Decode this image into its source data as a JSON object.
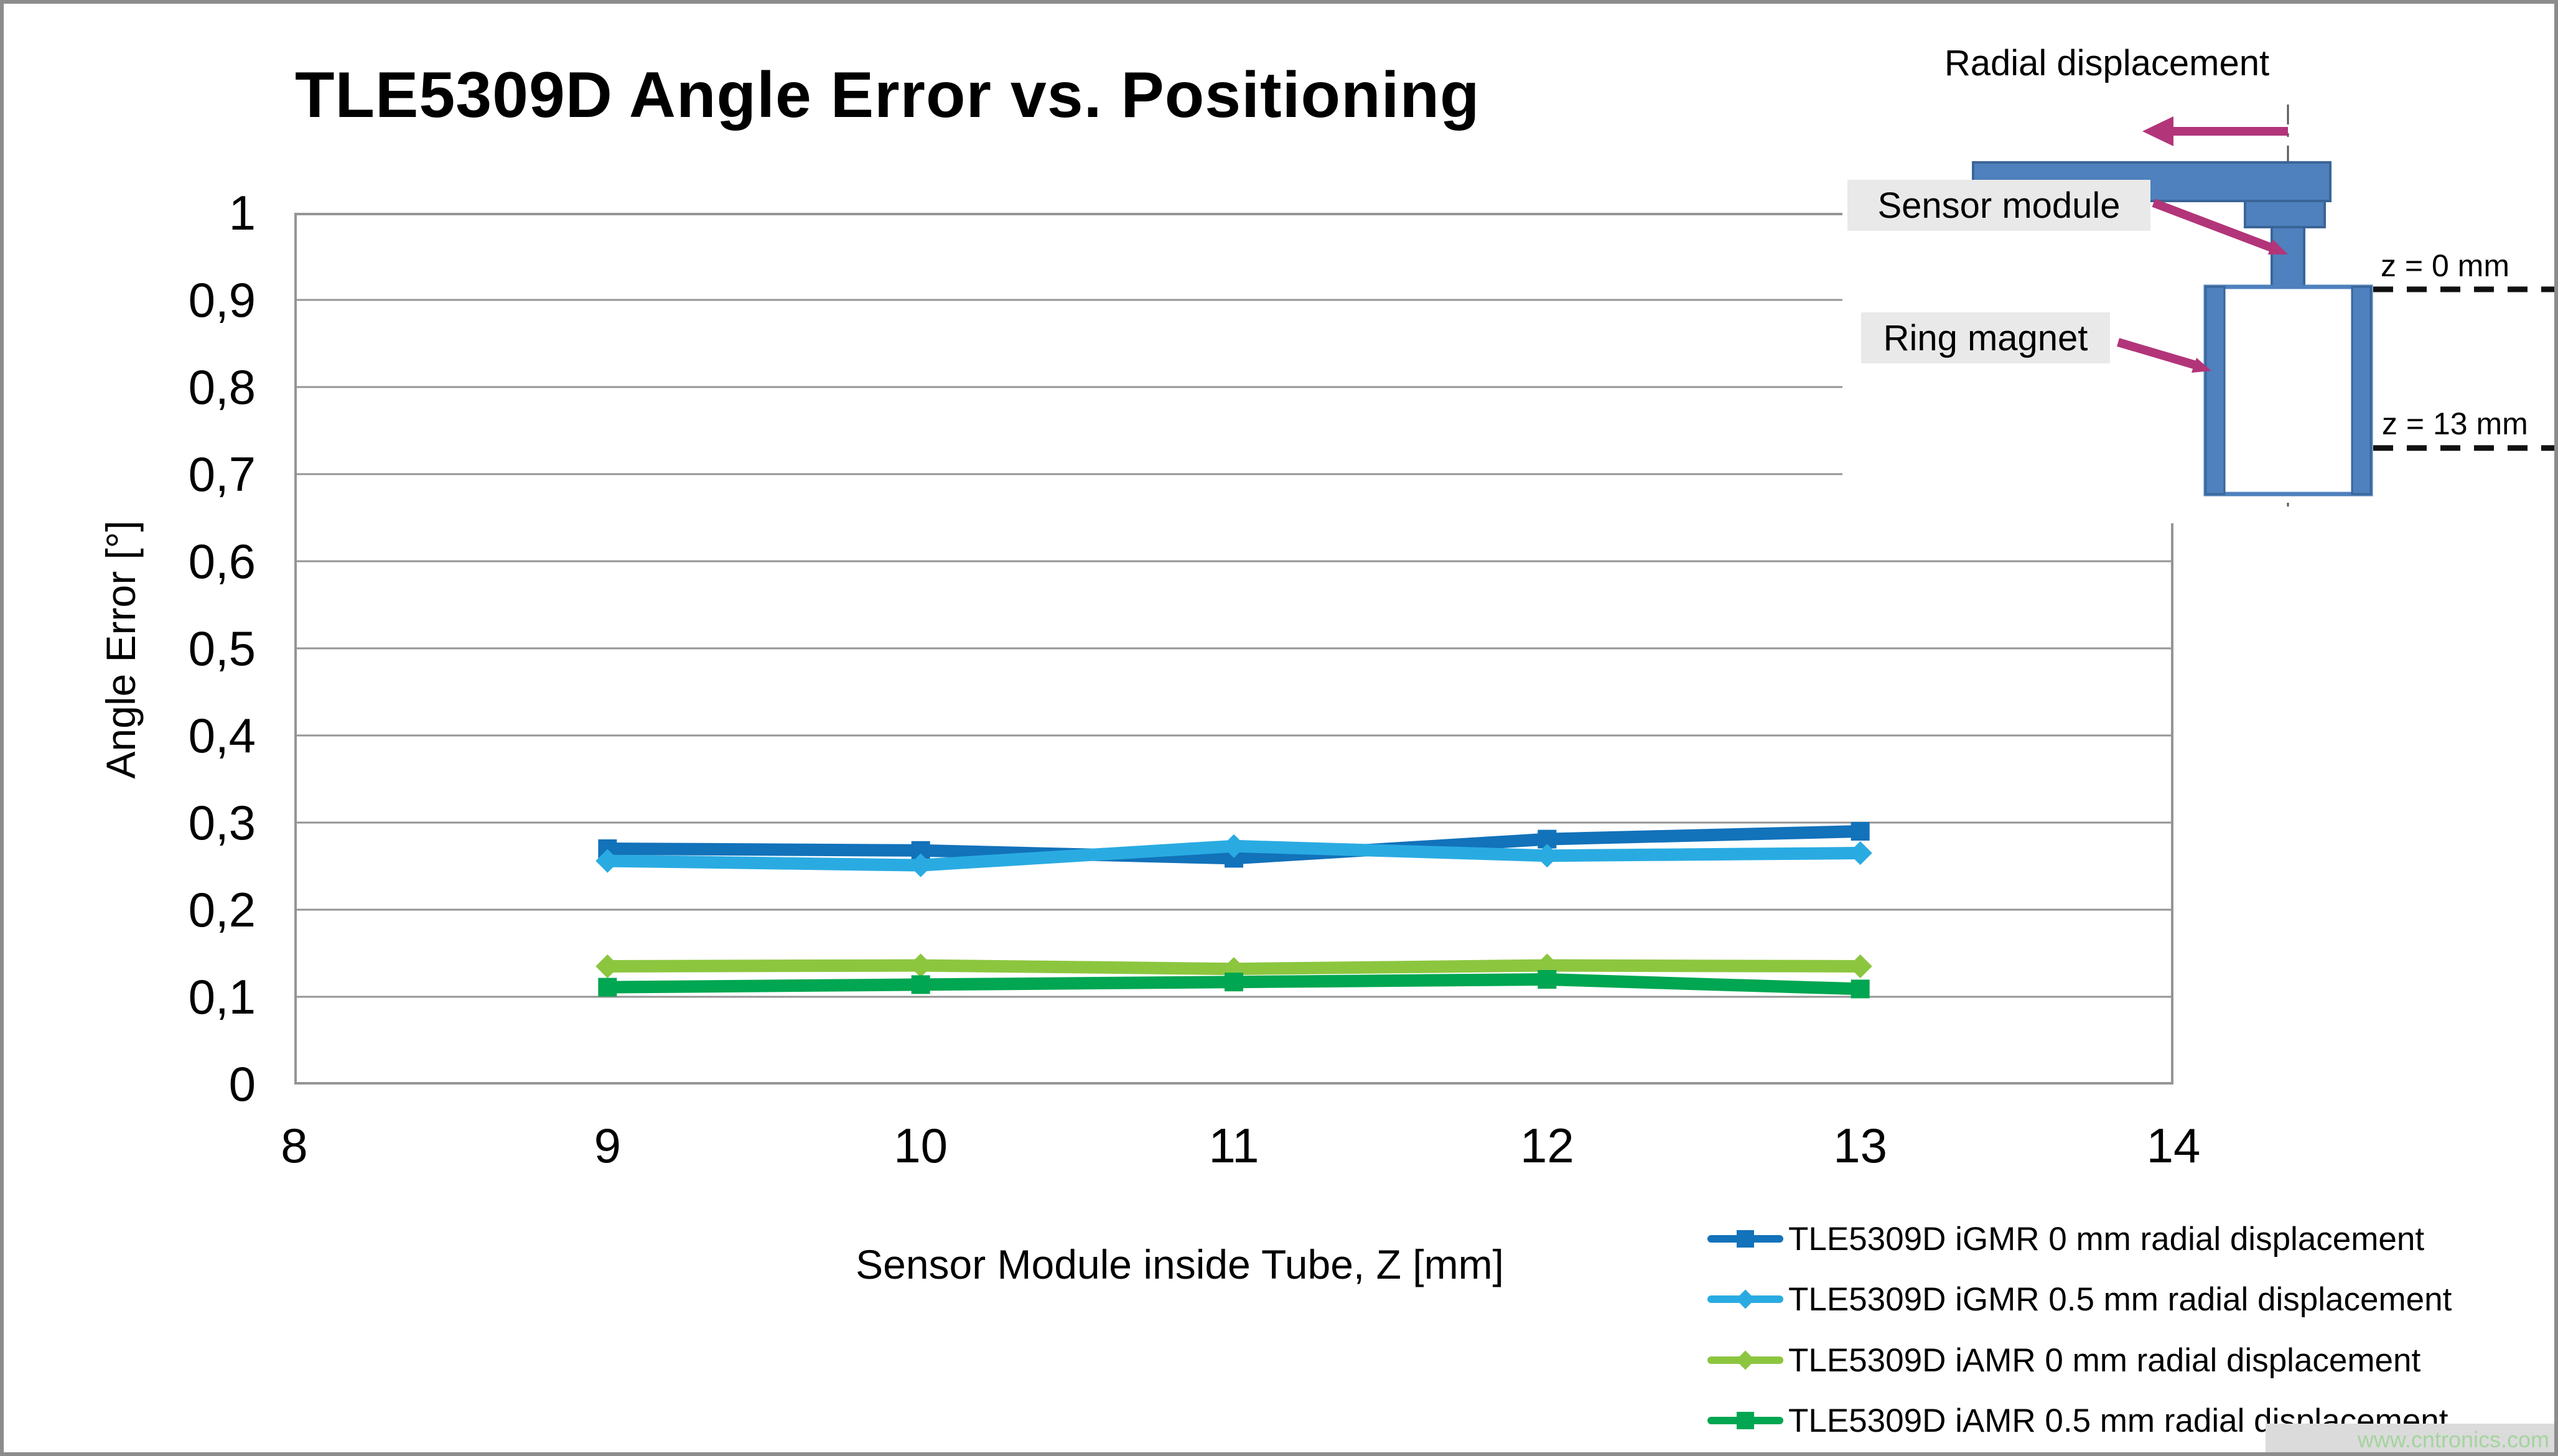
{
  "title": "TLE5309D Angle Error vs. Positioning",
  "watermark": "www.cntronics.com",
  "chart_data": {
    "type": "line",
    "title": "TLE5309D Angle Error vs. Positioning",
    "x": [
      9,
      10,
      11,
      12,
      13
    ],
    "x_axis": {
      "label": "Sensor Module inside Tube, Z [mm]",
      "range": [
        8,
        14
      ],
      "ticks": [
        8,
        9,
        10,
        11,
        12,
        13,
        14
      ],
      "tick_labels": [
        "8",
        "9",
        "10",
        "11",
        "12",
        "13",
        "14"
      ]
    },
    "y_axis": {
      "label": "Angle Error [°]",
      "range": [
        0,
        1
      ],
      "ticks": [
        0,
        0.1,
        0.2,
        0.3,
        0.4,
        0.5,
        0.6,
        0.7,
        0.8,
        0.9,
        1
      ],
      "tick_labels": [
        "0",
        "0,1",
        "0,2",
        "0,3",
        "0,4",
        "0,5",
        "0,6",
        "0,7",
        "0,8",
        "0,9",
        "1"
      ]
    },
    "grid": "horizontal",
    "grid_color": "#959595",
    "legend_position": "bottom-right",
    "series": [
      {
        "name": "TLE5309D iGMR 0 mm radial displacement",
        "color": "#1272BA",
        "marker": "square",
        "values": [
          0.27,
          0.268,
          0.259,
          0.281,
          0.29
        ]
      },
      {
        "name": "TLE5309D iGMR 0.5 mm radial displacement",
        "color": "#29ABE2",
        "marker": "diamond",
        "values": [
          0.256,
          0.251,
          0.273,
          0.262,
          0.265
        ]
      },
      {
        "name": "TLE5309D iAMR 0 mm radial displacement",
        "color": "#8CC63F",
        "marker": "diamond",
        "values": [
          0.135,
          0.136,
          0.132,
          0.136,
          0.135
        ]
      },
      {
        "name": "TLE5309D iAMR 0.5 mm radial displacement",
        "color": "#00A651",
        "marker": "square",
        "values": [
          0.111,
          0.114,
          0.117,
          0.12,
          0.109
        ]
      }
    ]
  },
  "diagram": {
    "radial_label": "Radial displacement",
    "sensor_label": "Sensor module",
    "ring_label": "Ring magnet",
    "z0_label": "z = 0 mm",
    "z13_label": "z = 13 mm",
    "blue_fill": "#4E81BD",
    "blue_stroke": "#3A6598",
    "pointer_color": "#B23579"
  }
}
